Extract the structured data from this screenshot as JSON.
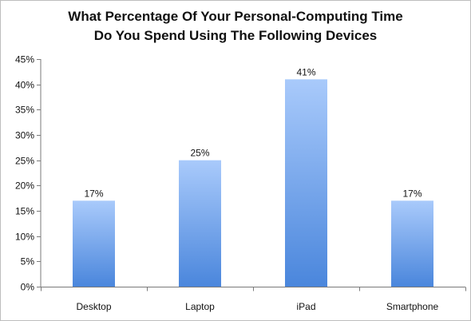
{
  "chart_data": {
    "type": "bar",
    "title_lines": [
      "What Percentage Of Your Personal-Computing Time",
      "Do You Spend Using The Following Devices"
    ],
    "categories": [
      "Desktop",
      "Laptop",
      "iPad",
      "Smartphone"
    ],
    "values": [
      17,
      25,
      41,
      17
    ],
    "value_labels": [
      "17%",
      "25%",
      "41%",
      "17%"
    ],
    "y_ticks": [
      "0%",
      "5%",
      "10%",
      "15%",
      "20%",
      "25%",
      "30%",
      "35%",
      "40%",
      "45%"
    ],
    "ylim": [
      0,
      45
    ],
    "grid": false,
    "bar_color_top": "#a9cafb",
    "bar_color_bottom": "#4a86dc"
  }
}
